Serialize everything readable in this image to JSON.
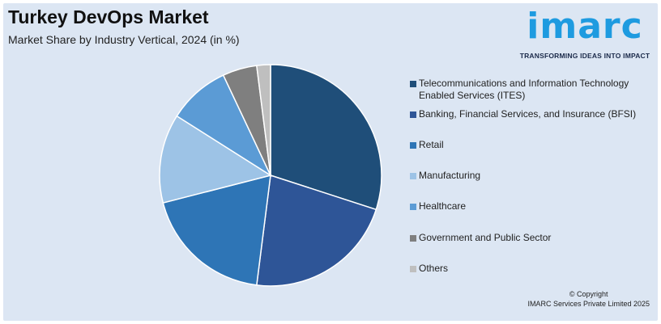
{
  "header": {
    "title": "Turkey DevOps Market",
    "subtitle": "Market Share by Industry Vertical, 2024 (in %)"
  },
  "logo": {
    "wordmark": "imarc",
    "tagline": "TRANSFORMING IDEAS INTO IMPACT",
    "color": "#1e9be0"
  },
  "footer": {
    "copyright_line1": "© Copyright",
    "copyright_line2": "IMARC Services Private Limited 2025"
  },
  "chart_data": {
    "type": "pie",
    "title": "Market Share by Industry Vertical, 2024 (in %)",
    "legend_position": "right",
    "categories": [
      "Telecommunications and Information Technology Enabled Services (ITES)",
      "Banking, Financial Services, and Insurance (BFSI)",
      "Retail",
      "Manufacturing",
      "Healthcare",
      "Government and Public Sector",
      "Others"
    ],
    "values": [
      30,
      22,
      19,
      13,
      9,
      5,
      2
    ],
    "colors": [
      "#1f4e79",
      "#2e5597",
      "#2e75b6",
      "#9dc3e6",
      "#5b9bd5",
      "#7f7f7f",
      "#bfbfbf"
    ]
  }
}
